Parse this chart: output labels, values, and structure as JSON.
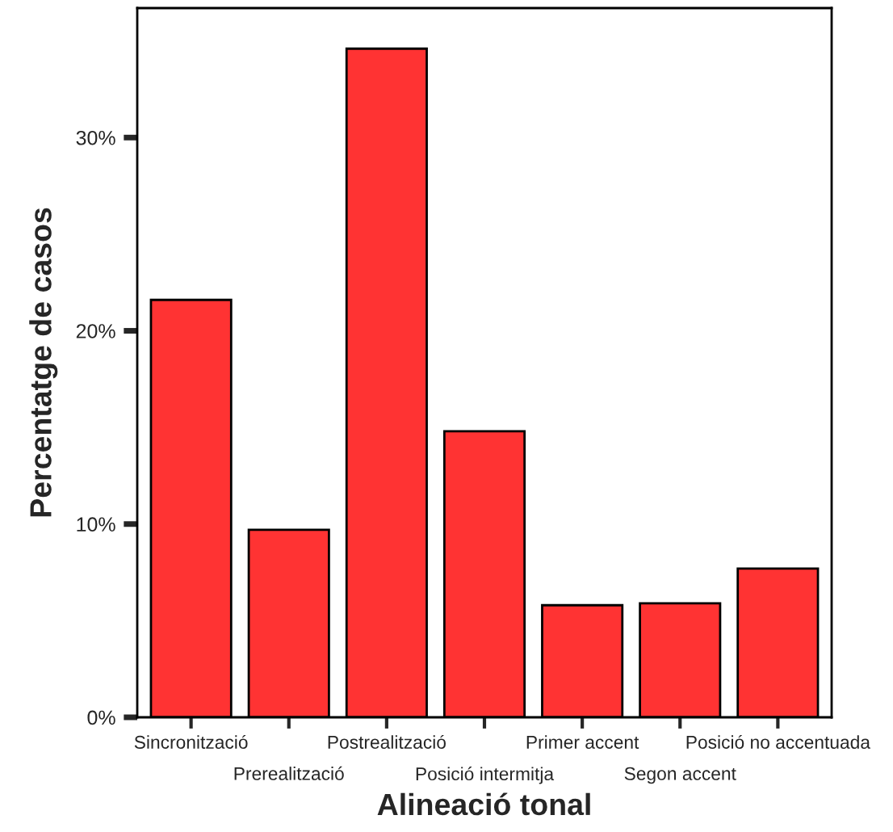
{
  "chart_data": {
    "type": "bar",
    "xlabel": "Alineació tonal",
    "ylabel": "Percentatge de casos",
    "categories": [
      "Sincronització",
      "Prerealització",
      "Postrealització",
      "Posició intermitja",
      "Primer accent",
      "Segon accent",
      "Posició no accentuada"
    ],
    "values": [
      21.6,
      9.7,
      34.6,
      14.8,
      5.8,
      5.9,
      7.7
    ],
    "color": "#ff3333",
    "ylim": [
      0,
      36.7
    ],
    "yticks": [
      {
        "value": 0,
        "label": "0%"
      },
      {
        "value": 10,
        "label": "10%"
      },
      {
        "value": 20,
        "label": "20%"
      },
      {
        "value": 30,
        "label": "30%"
      }
    ],
    "grid": false,
    "legend": false
  }
}
